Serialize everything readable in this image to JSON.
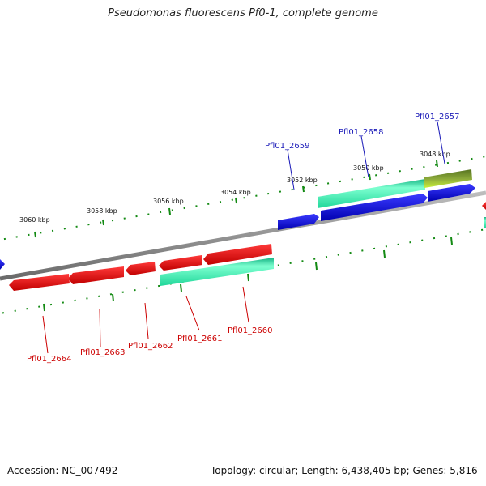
{
  "title": "Pseudomonas fluorescens Pf0-1, complete genome",
  "accession": "Accession: NC_007492",
  "topology": "Topology: circular; Length: 6,438,405 bp; Genes: 5,816",
  "colors": {
    "backbone": "#7f7f7f",
    "tick": "#138a13",
    "forward_gene": "#0a0adc",
    "reverse_gene": "#e00000",
    "forward_label": "#1a1ab8",
    "reverse_label": "#cc0000",
    "cds_band": "#2ee6a6",
    "rna_band": "#6e8f2a",
    "rna_band_light": "#c8ef3a"
  },
  "coordinate_labels": [
    "3048 kbp",
    "3050 kbp",
    "3052 kbp",
    "3054 kbp",
    "3056 kbp",
    "3058 kbp",
    "3060 kbp"
  ],
  "forward_labels": [
    "Pfl01_2657",
    "Pfl01_2658",
    "Pfl01_2659"
  ],
  "reverse_labels": [
    "Pfl01_2660",
    "Pfl01_2661",
    "Pfl01_2662",
    "Pfl01_2663",
    "Pfl01_2664"
  ]
}
